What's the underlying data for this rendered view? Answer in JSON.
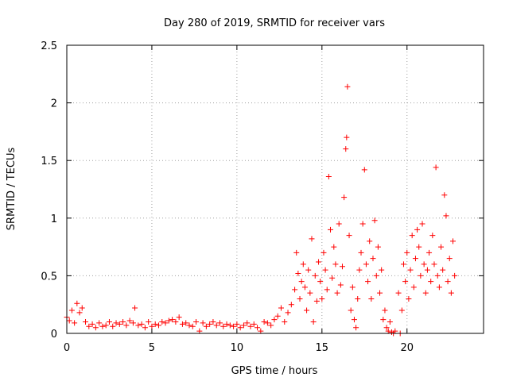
{
  "chart_data": {
    "type": "scatter",
    "title": "Day 280 of 2019, SRMTID for receiver vars",
    "xlabel": "GPS time / hours",
    "ylabel": "SRMTID / TECUs",
    "xlim": [
      0,
      24.5
    ],
    "ylim": [
      0,
      2.5
    ],
    "xticks": [
      0,
      5,
      10,
      15,
      20
    ],
    "yticks": [
      0,
      0.5,
      1,
      1.5,
      2,
      2.5
    ],
    "xtick_labels": [
      "0",
      "5",
      "10",
      "15",
      "20"
    ],
    "ytick_labels": [
      "0",
      "0.5",
      "1",
      "1.5",
      "2",
      "2.5"
    ],
    "grid": true,
    "marker": "+",
    "marker_color": "#ff0000",
    "series": [
      {
        "name": "SRMTID",
        "x": [
          0.0,
          0.15,
          0.3,
          0.45,
          0.6,
          0.75,
          0.9,
          1.1,
          1.3,
          1.5,
          1.7,
          1.9,
          2.1,
          2.3,
          2.5,
          2.7,
          2.9,
          3.1,
          3.3,
          3.5,
          3.7,
          3.9,
          4.0,
          4.2,
          4.4,
          4.6,
          4.8,
          5.0,
          5.2,
          5.4,
          5.6,
          5.8,
          6.0,
          6.2,
          6.4,
          6.6,
          6.8,
          7.0,
          7.2,
          7.4,
          7.6,
          7.8,
          8.0,
          8.2,
          8.4,
          8.6,
          8.8,
          9.0,
          9.2,
          9.4,
          9.6,
          9.8,
          10.0,
          10.2,
          10.4,
          10.6,
          10.8,
          11.0,
          11.2,
          11.4,
          11.6,
          11.8,
          12.0,
          12.2,
          12.4,
          12.6,
          12.8,
          13.0,
          13.2,
          13.4,
          13.5,
          13.6,
          13.7,
          13.8,
          13.9,
          14.0,
          14.1,
          14.2,
          14.3,
          14.4,
          14.5,
          14.6,
          14.7,
          14.8,
          14.9,
          15.0,
          15.1,
          15.2,
          15.3,
          15.4,
          15.5,
          15.6,
          15.7,
          15.8,
          15.9,
          16.0,
          16.1,
          16.2,
          16.3,
          16.4,
          16.45,
          16.5,
          16.6,
          16.7,
          16.8,
          16.9,
          17.0,
          17.1,
          17.2,
          17.3,
          17.4,
          17.5,
          17.6,
          17.7,
          17.8,
          17.9,
          18.0,
          18.1,
          18.2,
          18.3,
          18.4,
          18.5,
          18.6,
          18.7,
          18.8,
          18.9,
          19.0,
          19.1,
          19.2,
          19.3,
          19.5,
          19.6,
          19.7,
          19.8,
          19.9,
          20.0,
          20.1,
          20.2,
          20.3,
          20.4,
          20.5,
          20.6,
          20.7,
          20.8,
          20.9,
          21.0,
          21.1,
          21.2,
          21.3,
          21.4,
          21.5,
          21.6,
          21.7,
          21.8,
          21.9,
          22.0,
          22.1,
          22.2,
          22.3,
          22.4,
          22.5,
          22.6,
          22.7,
          22.8
        ],
        "y": [
          0.14,
          0.11,
          0.2,
          0.09,
          0.26,
          0.18,
          0.22,
          0.1,
          0.06,
          0.08,
          0.05,
          0.09,
          0.06,
          0.07,
          0.1,
          0.06,
          0.09,
          0.08,
          0.1,
          0.07,
          0.11,
          0.09,
          0.22,
          0.07,
          0.08,
          0.05,
          0.1,
          0.06,
          0.08,
          0.07,
          0.1,
          0.09,
          0.11,
          0.12,
          0.1,
          0.14,
          0.08,
          0.09,
          0.07,
          0.06,
          0.1,
          0.02,
          0.09,
          0.06,
          0.08,
          0.1,
          0.07,
          0.09,
          0.06,
          0.08,
          0.07,
          0.06,
          0.08,
          0.05,
          0.07,
          0.09,
          0.06,
          0.08,
          0.05,
          0.02,
          0.1,
          0.09,
          0.07,
          0.12,
          0.15,
          0.22,
          0.1,
          0.18,
          0.25,
          0.38,
          0.7,
          0.52,
          0.3,
          0.45,
          0.6,
          0.4,
          0.2,
          0.55,
          0.35,
          0.82,
          0.1,
          0.5,
          0.28,
          0.62,
          0.45,
          0.3,
          0.7,
          0.55,
          0.38,
          1.36,
          0.9,
          0.48,
          0.75,
          0.6,
          0.35,
          0.95,
          0.42,
          0.58,
          1.18,
          1.6,
          1.7,
          2.14,
          0.85,
          0.2,
          0.4,
          0.12,
          0.05,
          0.3,
          0.55,
          0.7,
          0.95,
          1.42,
          0.6,
          0.45,
          0.8,
          0.3,
          0.65,
          0.98,
          0.5,
          0.75,
          0.35,
          0.55,
          0.12,
          0.2,
          0.05,
          0.02,
          0.1,
          0.01,
          0.0,
          0.02,
          0.35,
          0.0,
          0.2,
          0.6,
          0.45,
          0.7,
          0.3,
          0.55,
          0.85,
          0.4,
          0.65,
          0.9,
          0.75,
          0.5,
          0.95,
          0.6,
          0.35,
          0.55,
          0.7,
          0.45,
          0.85,
          0.6,
          1.44,
          0.5,
          0.4,
          0.75,
          0.55,
          1.2,
          1.02,
          0.45,
          0.65,
          0.35,
          0.8,
          0.5
        ]
      }
    ]
  }
}
